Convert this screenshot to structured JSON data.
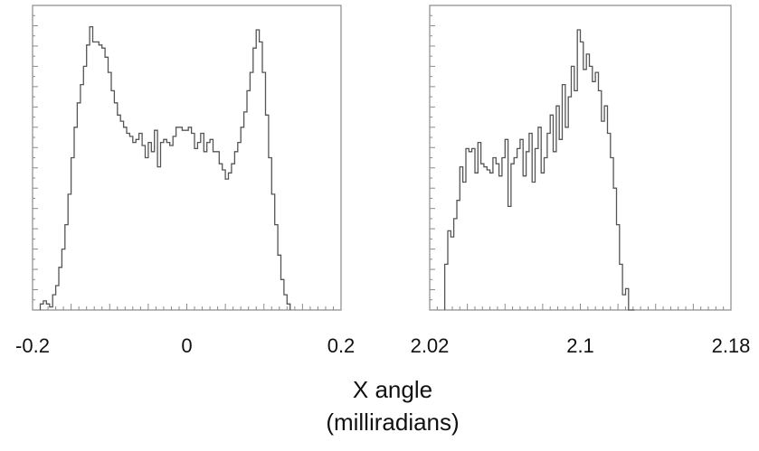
{
  "chart_data": [
    {
      "type": "histogram",
      "title": "",
      "ylabel": "",
      "xlim": [
        -0.2,
        0.2
      ],
      "ylim": [
        0,
        1.0
      ],
      "x_tick_labels": [
        "-0.2",
        "0",
        "0.2"
      ],
      "x_tick_values": [
        -0.2,
        0,
        0.2
      ],
      "bin_start": -0.19,
      "bin_width": 0.004,
      "counts": [
        0.02,
        0.03,
        0.02,
        0.01,
        0.05,
        0.08,
        0.14,
        0.2,
        0.28,
        0.38,
        0.5,
        0.6,
        0.68,
        0.74,
        0.8,
        0.87,
        0.93,
        0.88,
        0.88,
        0.87,
        0.86,
        0.83,
        0.78,
        0.72,
        0.68,
        0.64,
        0.62,
        0.6,
        0.58,
        0.57,
        0.55,
        0.56,
        0.58,
        0.54,
        0.5,
        0.55,
        0.52,
        0.59,
        0.47,
        0.55,
        0.56,
        0.55,
        0.54,
        0.57,
        0.6,
        0.6,
        0.59,
        0.59,
        0.6,
        0.58,
        0.53,
        0.55,
        0.58,
        0.52,
        0.55,
        0.56,
        0.52,
        0.52,
        0.48,
        0.46,
        0.43,
        0.45,
        0.48,
        0.52,
        0.55,
        0.6,
        0.65,
        0.72,
        0.78,
        0.86,
        0.92,
        0.88,
        0.78,
        0.64,
        0.5,
        0.38,
        0.28,
        0.18,
        0.1,
        0.05,
        0.02
      ]
    },
    {
      "type": "histogram",
      "title": "",
      "ylabel": "",
      "xlim": [
        2.02,
        2.18
      ],
      "ylim": [
        0,
        1.0
      ],
      "x_tick_labels": [
        "2.02",
        "2.1",
        "2.18"
      ],
      "x_tick_values": [
        2.02,
        2.1,
        2.18
      ],
      "bin_start": 2.028,
      "bin_width": 0.0016,
      "counts": [
        0.15,
        0.26,
        0.24,
        0.3,
        0.36,
        0.47,
        0.42,
        0.53,
        0.52,
        0.53,
        0.45,
        0.55,
        0.48,
        0.47,
        0.46,
        0.45,
        0.5,
        0.48,
        0.44,
        0.5,
        0.56,
        0.34,
        0.48,
        0.5,
        0.53,
        0.56,
        0.44,
        0.52,
        0.58,
        0.42,
        0.53,
        0.6,
        0.45,
        0.5,
        0.58,
        0.64,
        0.52,
        0.67,
        0.56,
        0.74,
        0.6,
        0.7,
        0.8,
        0.72,
        0.92,
        0.88,
        0.79,
        0.84,
        0.8,
        0.75,
        0.78,
        0.72,
        0.62,
        0.67,
        0.58,
        0.5,
        0.4,
        0.28,
        0.15,
        0.05,
        0.07,
        0.0,
        0.0
      ]
    }
  ],
  "xlabel_line1": "X angle",
  "xlabel_line2": "(milliradians)",
  "colors": {
    "frame": "#8a8a8a",
    "line": "#555555"
  }
}
